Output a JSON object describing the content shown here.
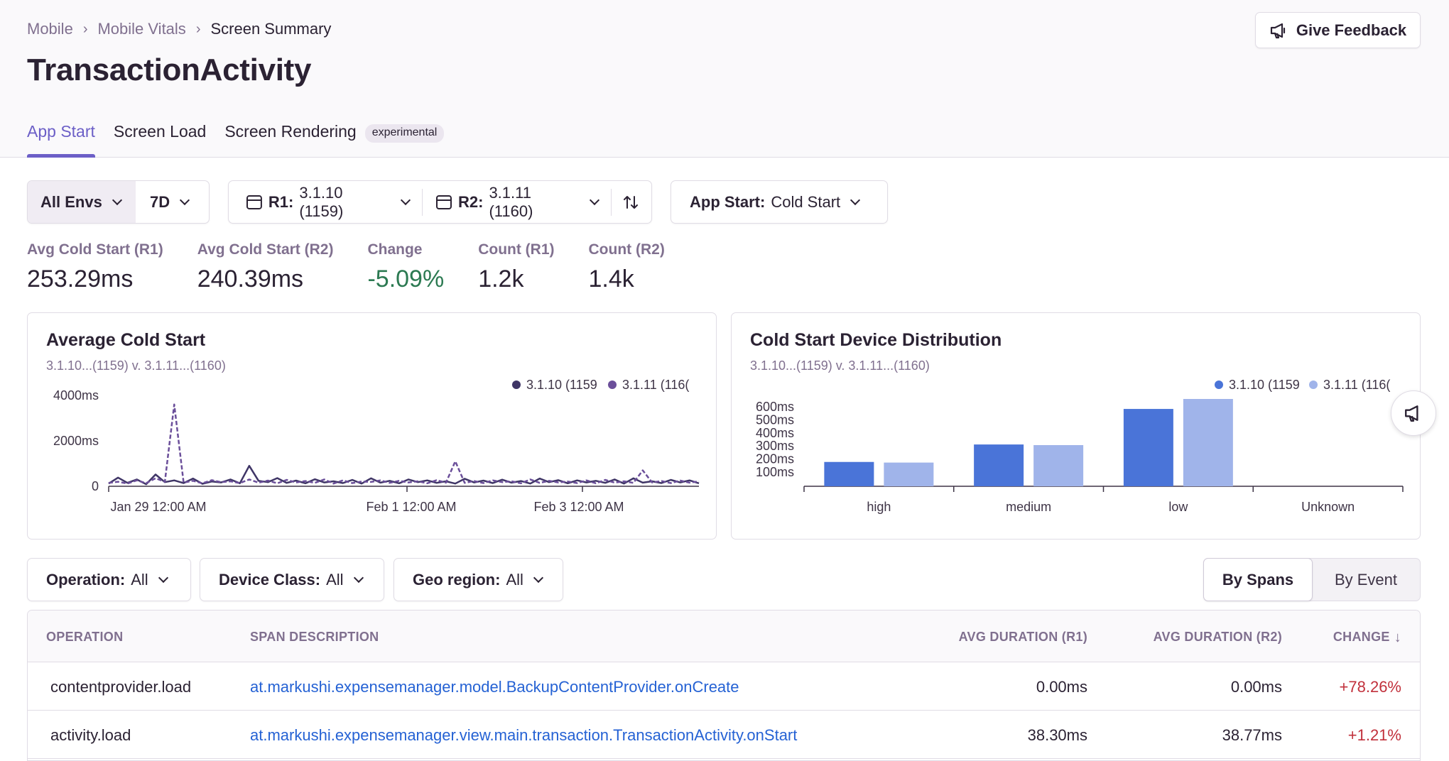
{
  "breadcrumb": [
    "Mobile",
    "Mobile Vitals",
    "Screen Summary"
  ],
  "page_title": "TransactionActivity",
  "feedback_label": "Give Feedback",
  "tabs": [
    {
      "label": "App Start",
      "active": true
    },
    {
      "label": "Screen Load",
      "active": false
    },
    {
      "label": "Screen Rendering",
      "active": false,
      "badge": "experimental"
    }
  ],
  "controls": {
    "env": "All Envs",
    "period": "7D",
    "r1_label": "R1:",
    "r1_value": "3.1.10 (1159)",
    "r2_label": "R2:",
    "r2_value": "3.1.11 (1160)",
    "app_start_label": "App Start:",
    "app_start_value": "Cold Start"
  },
  "kpis": [
    {
      "label": "Avg Cold Start (R1)",
      "value": "253.29ms"
    },
    {
      "label": "Avg Cold Start (R2)",
      "value": "240.39ms"
    },
    {
      "label": "Change",
      "value": "-5.09%",
      "status": "good"
    },
    {
      "label": "Count (R1)",
      "value": "1.2k"
    },
    {
      "label": "Count (R2)",
      "value": "1.4k"
    }
  ],
  "colors": {
    "accent": "#6c5fc7",
    "series_r1_line": "#3f3566",
    "series_r2_line": "#6b4f9a",
    "bar_r1": "#4a74d8",
    "bar_r2": "#a0b4ea",
    "good": "#2c7a52",
    "bad": "#c1303b",
    "link": "#2562d4"
  },
  "chart_data": [
    {
      "type": "line",
      "title": "Average Cold Start",
      "subtitle": "3.1.10...(1159) v. 3.1.11...(1160)",
      "legend": [
        "3.1.10 (1159",
        "3.1.11 (116("
      ],
      "legend_position": "top-right",
      "yticks": [
        "4000ms",
        "2000ms",
        "0"
      ],
      "ylim": [
        0,
        4000
      ],
      "xticks": [
        "Jan 29 12:00 AM",
        "Feb 1 12:00 AM",
        "Feb 3 12:00 AM"
      ],
      "series": [
        {
          "name": "3.1.10 (1159)",
          "style": "solid",
          "values": [
            120,
            380,
            150,
            300,
            90,
            520,
            180,
            260,
            140,
            340,
            110,
            210,
            170,
            300,
            130,
            900,
            240,
            180,
            360,
            150,
            250,
            130,
            310,
            170,
            220,
            140,
            280,
            120,
            350,
            160,
            240,
            130,
            300,
            180,
            260,
            150,
            220,
            120,
            330,
            170,
            250,
            140,
            290,
            160,
            230,
            120,
            340,
            180,
            270,
            130,
            260,
            170,
            240,
            150,
            300,
            120,
            350,
            160,
            220,
            140,
            280,
            170,
            260,
            130
          ]
        },
        {
          "name": "3.1.11 (1160)",
          "style": "dashed",
          "values": [
            150,
            200,
            120,
            260,
            140,
            350,
            200,
            3600,
            160,
            240,
            130,
            270,
            180,
            220,
            140,
            300,
            160,
            250,
            130,
            280,
            170,
            230,
            150,
            300,
            120,
            260,
            140,
            210,
            190,
            260,
            150,
            240,
            170,
            220,
            130,
            270,
            160,
            1100,
            150,
            230,
            140,
            260,
            180,
            220,
            130,
            300,
            150,
            240,
            170,
            210,
            140,
            260,
            130,
            280,
            160,
            220,
            150,
            700,
            170,
            230,
            140,
            250,
            160,
            220
          ]
        }
      ]
    },
    {
      "type": "bar",
      "title": "Cold Start Device Distribution",
      "subtitle": "3.1.10...(1159) v. 3.1.11...(1160)",
      "legend": [
        "3.1.10 (1159",
        "3.1.11 (116("
      ],
      "legend_position": "top-right",
      "yticks": [
        "600ms",
        "500ms",
        "400ms",
        "300ms",
        "200ms",
        "100ms"
      ],
      "categories": [
        "high",
        "medium",
        "low",
        "Unknown"
      ],
      "ylim": [
        0,
        700
      ],
      "series": [
        {
          "name": "3.1.10 (1159)",
          "values": [
            195,
            335,
            620,
            0
          ]
        },
        {
          "name": "3.1.11 (1160)",
          "values": [
            190,
            330,
            700,
            0
          ]
        }
      ]
    }
  ],
  "filters": [
    {
      "label": "Operation:",
      "value": "All"
    },
    {
      "label": "Device Class:",
      "value": "All"
    },
    {
      "label": "Geo region:",
      "value": "All"
    }
  ],
  "view_toggle": {
    "spans": "By Spans",
    "event": "By Event"
  },
  "table": {
    "headers": [
      "OPERATION",
      "SPAN DESCRIPTION",
      "AVG DURATION (R1)",
      "AVG DURATION (R2)",
      "CHANGE"
    ],
    "rows": [
      {
        "operation": "contentprovider.load",
        "description": "at.markushi.expensemanager.model.BackupContentProvider.onCreate",
        "r1": "0.00ms",
        "r2": "0.00ms",
        "change": "+78.26%"
      },
      {
        "operation": "activity.load",
        "description": "at.markushi.expensemanager.view.main.transaction.TransactionActivity.onStart",
        "r1": "38.30ms",
        "r2": "38.77ms",
        "change": "+1.21%"
      }
    ]
  }
}
